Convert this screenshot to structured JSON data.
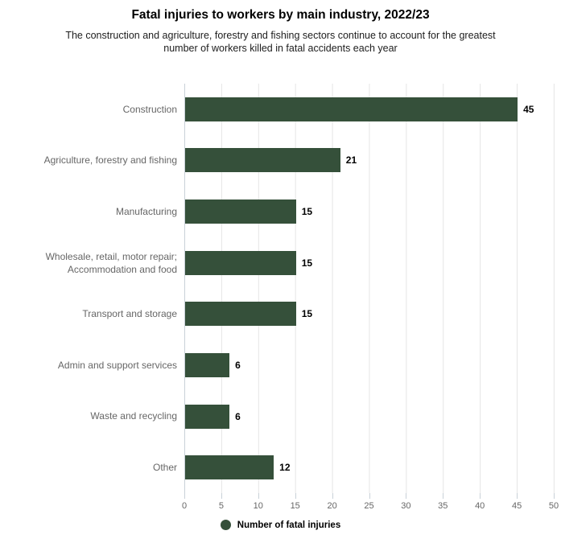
{
  "title": "Fatal injuries to workers by main industry, 2022/23",
  "subtitle": "The construction and agriculture, forestry and fishing sectors continue to account for the greatest\nnumber of workers killed in fatal accidents each year",
  "legend": {
    "label": "Number of fatal injuries",
    "marker": "circle-icon"
  },
  "colors": {
    "bar": "#35503a",
    "category_label": "#666666",
    "value_label": "#000000",
    "gridline": "#e5e5e5",
    "axis_line": "#c9d1d8",
    "tick_label": "#666666",
    "background": "#ffffff"
  },
  "chart_data": {
    "type": "bar",
    "orientation": "horizontal",
    "title": "Fatal injuries to workers by main industry, 2022/23",
    "subtitle": "The construction and agriculture, forestry and fishing sectors continue to account for the greatest number of workers killed in fatal accidents each year",
    "categories": [
      "Construction",
      "Agriculture, forestry and fishing",
      "Manufacturing",
      "Wholesale, retail, motor repair;\nAccommodation and food",
      "Transport and storage",
      "Admin and support services",
      "Waste and recycling",
      "Other"
    ],
    "values": [
      45,
      21,
      15,
      15,
      15,
      6,
      6,
      12
    ],
    "xlabel": "",
    "ylabel": "",
    "xlim": [
      0,
      50
    ],
    "x_ticks": [
      0,
      5,
      10,
      15,
      20,
      25,
      30,
      35,
      40,
      45,
      50
    ],
    "grid": true,
    "data_labels": true,
    "legend": [
      "Number of fatal injuries"
    ],
    "legend_position": "bottom"
  }
}
